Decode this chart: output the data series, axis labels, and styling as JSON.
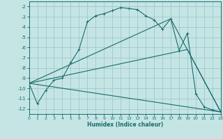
{
  "xlabel": "Humidex (Indice chaleur)",
  "bg_color": "#c5e5e5",
  "grid_color": "#b8d8d8",
  "line_color": "#1a6b6b",
  "xlim": [
    0,
    23
  ],
  "ylim": [
    -12.5,
    -1.5
  ],
  "yticks": [
    -2,
    -3,
    -4,
    -5,
    -6,
    -7,
    -8,
    -9,
    -10,
    -11,
    -12
  ],
  "xticks": [
    0,
    1,
    2,
    3,
    4,
    5,
    6,
    7,
    8,
    9,
    10,
    11,
    12,
    13,
    14,
    15,
    16,
    17,
    18,
    19,
    20,
    21,
    22,
    23
  ],
  "curve_x": [
    0,
    1,
    2,
    3,
    4,
    5,
    6,
    7,
    8,
    9,
    10,
    11,
    12,
    13,
    14,
    15,
    16,
    17,
    18,
    19,
    20,
    21,
    22,
    23
  ],
  "curve_y": [
    -9.5,
    -11.5,
    -10.2,
    -9.2,
    -9.0,
    -7.5,
    -6.2,
    -3.5,
    -2.9,
    -2.7,
    -2.4,
    -2.1,
    -2.2,
    -2.3,
    -2.9,
    -3.3,
    -4.2,
    -3.2,
    -6.3,
    -4.6,
    -10.5,
    -11.8,
    -12.1,
    -12.3
  ],
  "line1_x": [
    0,
    19,
    23
  ],
  "line1_y": [
    -9.5,
    -6.2,
    -12.3
  ],
  "line2_x": [
    0,
    23
  ],
  "line2_y": [
    -9.5,
    -12.3
  ],
  "line3_x": [
    0,
    17,
    23
  ],
  "line3_y": [
    -9.5,
    -3.2,
    -12.3
  ]
}
